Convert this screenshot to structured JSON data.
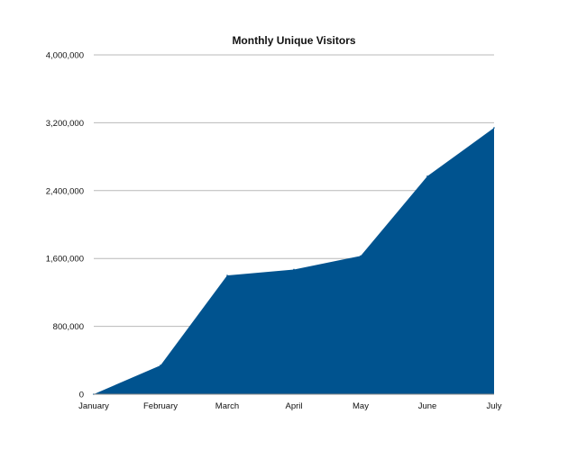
{
  "chart_data": {
    "type": "area",
    "title": "Monthly Unique Visitors",
    "xlabel": "",
    "ylabel": "",
    "categories": [
      "January",
      "February",
      "March",
      "April",
      "May",
      "June",
      "July"
    ],
    "series": [
      {
        "values": [
          0,
          340000,
          1400000,
          1470000,
          1630000,
          2570000,
          3140000
        ]
      }
    ],
    "ylim": [
      0,
      4000000
    ],
    "yticks": [
      0,
      800000,
      1600000,
      2400000,
      3200000,
      4000000
    ],
    "ytick_labels": [
      "0",
      "800,000",
      "1,600,000",
      "2,400,000",
      "3,200,000",
      "4,000,000"
    ],
    "grid": true,
    "legend": "none",
    "colors": {
      "area": "#00538f",
      "grid": "#b8b8b8",
      "axis": "#8a8a8a"
    }
  }
}
